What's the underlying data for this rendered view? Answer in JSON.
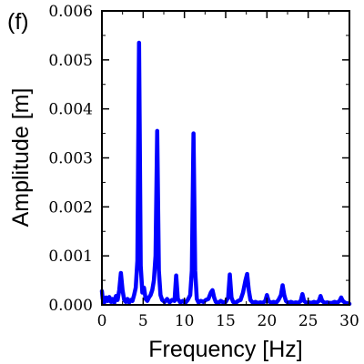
{
  "panel_label": "(f)",
  "chart_data": {
    "type": "line",
    "title": "",
    "xlabel": "Frequency [Hz]",
    "ylabel": "Amplitude [m]",
    "xlim": [
      0,
      30
    ],
    "ylim": [
      0,
      0.006
    ],
    "xticks": [
      0,
      5,
      10,
      15,
      20,
      25,
      30
    ],
    "xtick_labels": [
      "0",
      "5",
      "10",
      "15",
      "20",
      "25",
      "30"
    ],
    "yticks": [
      0,
      0.001,
      0.002,
      0.003,
      0.004,
      0.005,
      0.006
    ],
    "ytick_labels": [
      "0.000",
      "0.001",
      "0.002",
      "0.003",
      "0.004",
      "0.005",
      "0.006"
    ],
    "grid": false,
    "legend": "none",
    "color": "#0000ff",
    "series": [
      {
        "x": [
          0.0,
          0.1,
          0.3,
          0.5,
          0.7,
          0.9,
          1.1,
          1.3,
          1.5,
          1.7,
          1.9,
          2.1,
          2.3,
          2.5,
          2.7,
          2.9,
          3.1,
          3.3,
          3.5,
          3.7,
          3.9,
          4.1,
          4.3,
          4.5,
          4.7,
          4.9,
          5.1,
          5.3,
          5.5,
          5.7,
          5.9,
          6.1,
          6.3,
          6.5,
          6.7,
          6.9,
          7.1,
          7.3,
          7.6,
          7.9,
          8.2,
          8.5,
          8.8,
          9.0,
          9.2,
          9.5,
          9.8,
          10.1,
          10.4,
          10.7,
          10.9,
          11.1,
          11.3,
          11.5,
          11.7,
          12.0,
          12.3,
          12.6,
          12.9,
          13.2,
          13.4,
          13.6,
          13.8,
          14.1,
          14.4,
          14.7,
          15.0,
          15.3,
          15.5,
          15.7,
          15.9,
          16.2,
          16.5,
          16.8,
          17.1,
          17.4,
          17.6,
          17.8,
          18.0,
          18.3,
          18.6,
          18.9,
          19.2,
          19.5,
          19.8,
          20.0,
          20.2,
          20.5,
          20.8,
          21.1,
          21.4,
          21.7,
          21.9,
          22.1,
          22.3,
          22.6,
          22.9,
          23.2,
          23.5,
          23.8,
          24.1,
          24.3,
          24.5,
          24.8,
          25.1,
          25.4,
          25.7,
          26.0,
          26.3,
          26.5,
          26.7,
          27.0,
          27.3,
          27.6,
          27.9,
          28.2,
          28.5,
          28.8,
          29.0,
          29.2,
          29.5,
          29.8,
          30.0
        ],
        "y": [
          0.00028,
          0.00012,
          5e-05,
          0.00015,
          8e-05,
          0.00016,
          6e-05,
          0.00012,
          4e-05,
          0.00018,
          0.0001,
          0.0003,
          0.00065,
          0.0003,
          0.0001,
          6e-05,
          0.00012,
          5e-05,
          0.0001,
          8e-05,
          0.0002,
          0.00035,
          0.0009,
          0.00535,
          0.0008,
          0.00025,
          0.00035,
          0.00012,
          8e-05,
          0.00015,
          0.0002,
          0.0003,
          0.0005,
          0.001,
          0.00355,
          0.0007,
          0.0002,
          0.0001,
          6e-05,
          0.00012,
          5e-05,
          0.0001,
          8e-05,
          0.0006,
          0.00012,
          5e-05,
          8e-05,
          4e-05,
          0.0001,
          0.0002,
          0.0007,
          0.0035,
          0.0007,
          0.00012,
          5e-05,
          8e-05,
          6e-05,
          0.0001,
          0.00012,
          0.00025,
          0.0003,
          0.00015,
          6e-05,
          4e-05,
          8e-05,
          5e-05,
          6e-05,
          0.00015,
          0.00062,
          0.00015,
          6e-05,
          4e-05,
          8e-05,
          0.0001,
          0.00025,
          0.0005,
          0.00063,
          0.0003,
          0.0001,
          4e-05,
          6e-05,
          4e-05,
          5e-05,
          4e-05,
          8e-05,
          0.0002,
          8e-05,
          4e-05,
          6e-05,
          4e-05,
          0.0001,
          0.0002,
          0.0004,
          0.0002,
          8e-05,
          4e-05,
          6e-05,
          4e-05,
          5e-05,
          4e-05,
          8e-05,
          0.00022,
          8e-05,
          4e-05,
          5e-05,
          4e-05,
          6e-05,
          4e-05,
          8e-05,
          0.00018,
          8e-05,
          4e-05,
          5e-05,
          4e-05,
          4e-05,
          6e-05,
          4e-05,
          8e-05,
          0.00015,
          8e-05,
          4e-05,
          3e-05,
          2e-05
        ]
      }
    ]
  }
}
